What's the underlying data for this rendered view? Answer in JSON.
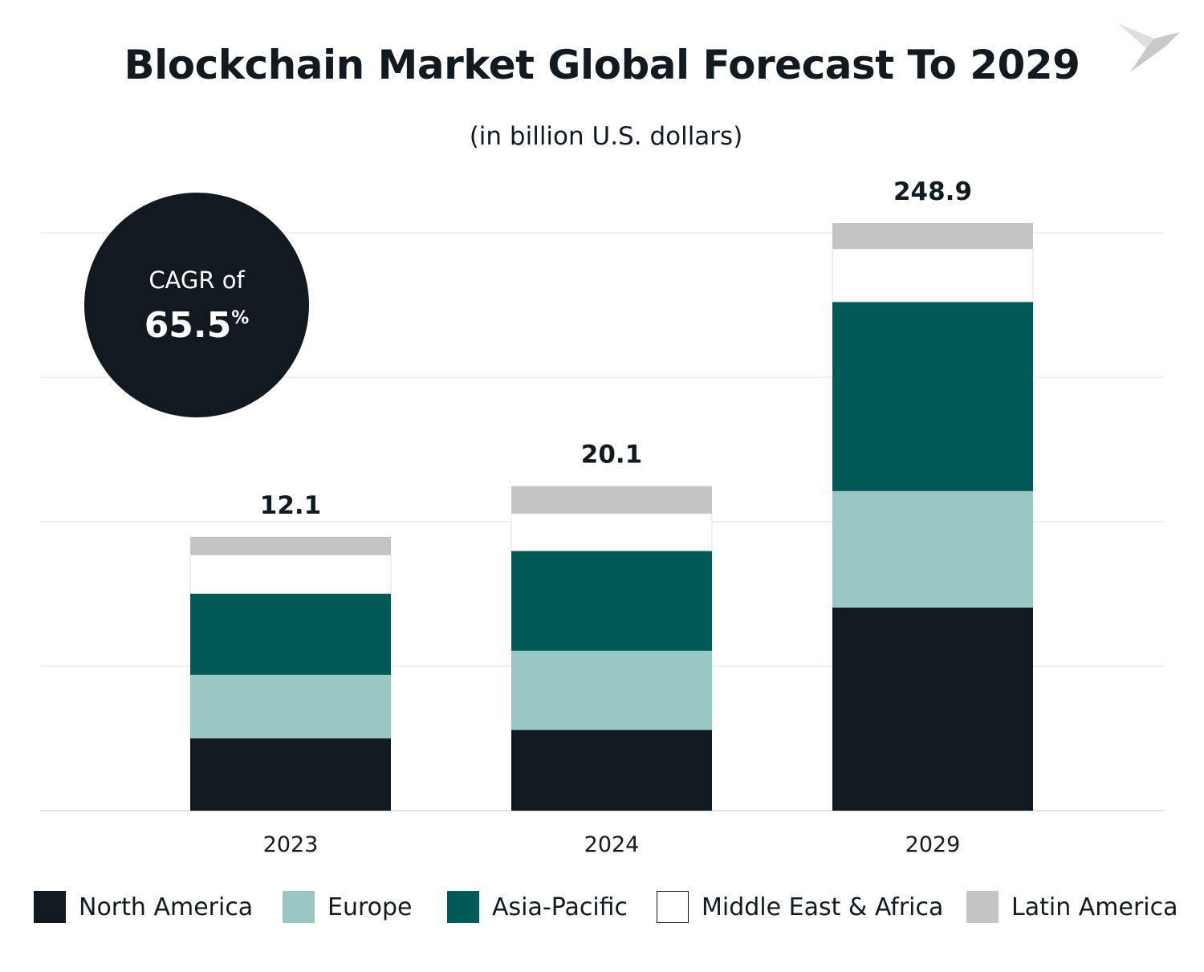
{
  "logo_icon": "bird-logo-icon",
  "cagr": {
    "label": "CAGR of",
    "value": "65.5",
    "unit": "%"
  },
  "chart_data": {
    "type": "bar",
    "stacked": true,
    "title": "Blockchain Market Global Forecast To 2029",
    "subtitle": "(in billion U.S. dollars)",
    "xlabel": "",
    "ylabel": "",
    "categories": [
      "2023",
      "2024",
      "2029"
    ],
    "totals": [
      "12.1",
      "20.1",
      "248.9"
    ],
    "grid": true,
    "y_axis_labels": false,
    "legend_position": "bottom",
    "series": [
      {
        "name": "North America",
        "color": "#121a21",
        "values": [
          3.2,
          5.0,
          86.0
        ]
      },
      {
        "name": "Europe",
        "color": "#99c7c4",
        "values": [
          2.8,
          4.9,
          49.3
        ]
      },
      {
        "name": "Asia-Pacific",
        "color": "#025a58",
        "values": [
          3.6,
          6.2,
          80.2
        ]
      },
      {
        "name": "Middle East & Africa",
        "color": "#ffffff",
        "values": [
          1.7,
          2.3,
          22.4
        ]
      },
      {
        "name": "Latin America",
        "color": "#c4c4c4",
        "values": [
          0.8,
          1.7,
          10.9
        ]
      }
    ]
  }
}
